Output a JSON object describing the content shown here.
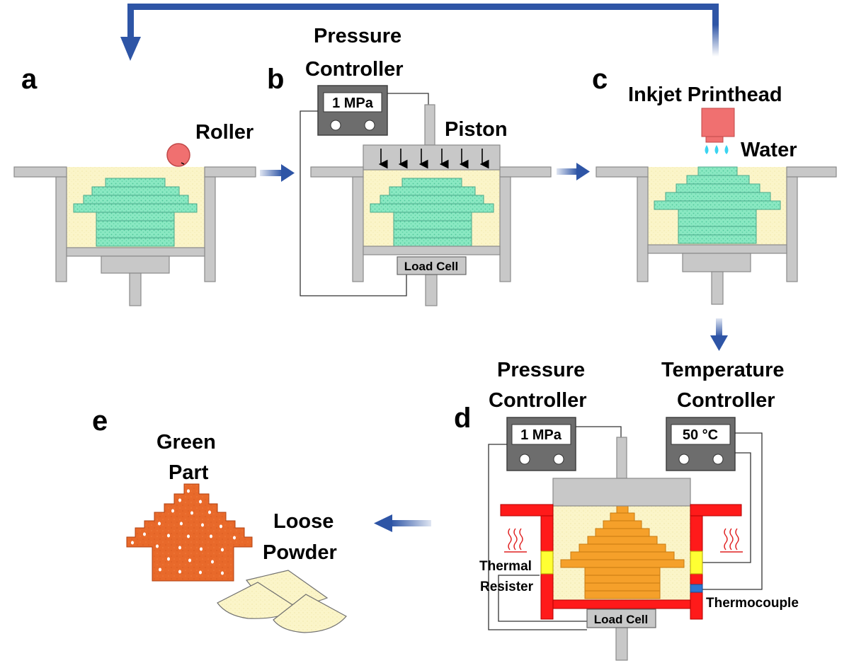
{
  "panels": {
    "a": {
      "letter": "a",
      "roller_label": "Roller"
    },
    "b": {
      "letter": "b",
      "controller_title_1": "Pressure",
      "controller_title_2": "Controller",
      "controller_readout": "1 MPa",
      "piston_label": "Piston",
      "load_cell_label": "Load Cell"
    },
    "c": {
      "letter": "c",
      "printhead_label": "Inkjet Printhead",
      "water_label": "Water"
    },
    "d": {
      "letter": "d",
      "pressure_title_1": "Pressure",
      "pressure_title_2": "Controller",
      "pressure_readout": "1 MPa",
      "temperature_title_1": "Temperature",
      "temperature_title_2": "Controller",
      "temperature_readout": "50 °C",
      "thermal_label_1": "Thermal",
      "thermal_label_2": "Resister",
      "thermocouple_label": "Thermocouple",
      "load_cell_label": "Load Cell"
    },
    "e": {
      "letter": "e",
      "green_part_1": "Green",
      "green_part_2": "Part",
      "loose_powder_1": "Loose",
      "loose_powder_2": "Powder"
    }
  },
  "colors": {
    "frame": "#c8c8c8",
    "frame_stroke": "#888888",
    "powder": "#fbf5c9",
    "part_green": "#7de0b8",
    "part_orange": "#f5a02a",
    "part_dark_orange": "#e8692a",
    "heater_red": "#ff1a1a",
    "resister_yellow": "#ffff33",
    "thermocouple_blue": "#2e75d1",
    "printhead": "#f07070",
    "roller": "#f07070",
    "water": "#3ad4f0",
    "arrow_blue": "#2e55a6",
    "controller_body": "#6d6d6d"
  }
}
